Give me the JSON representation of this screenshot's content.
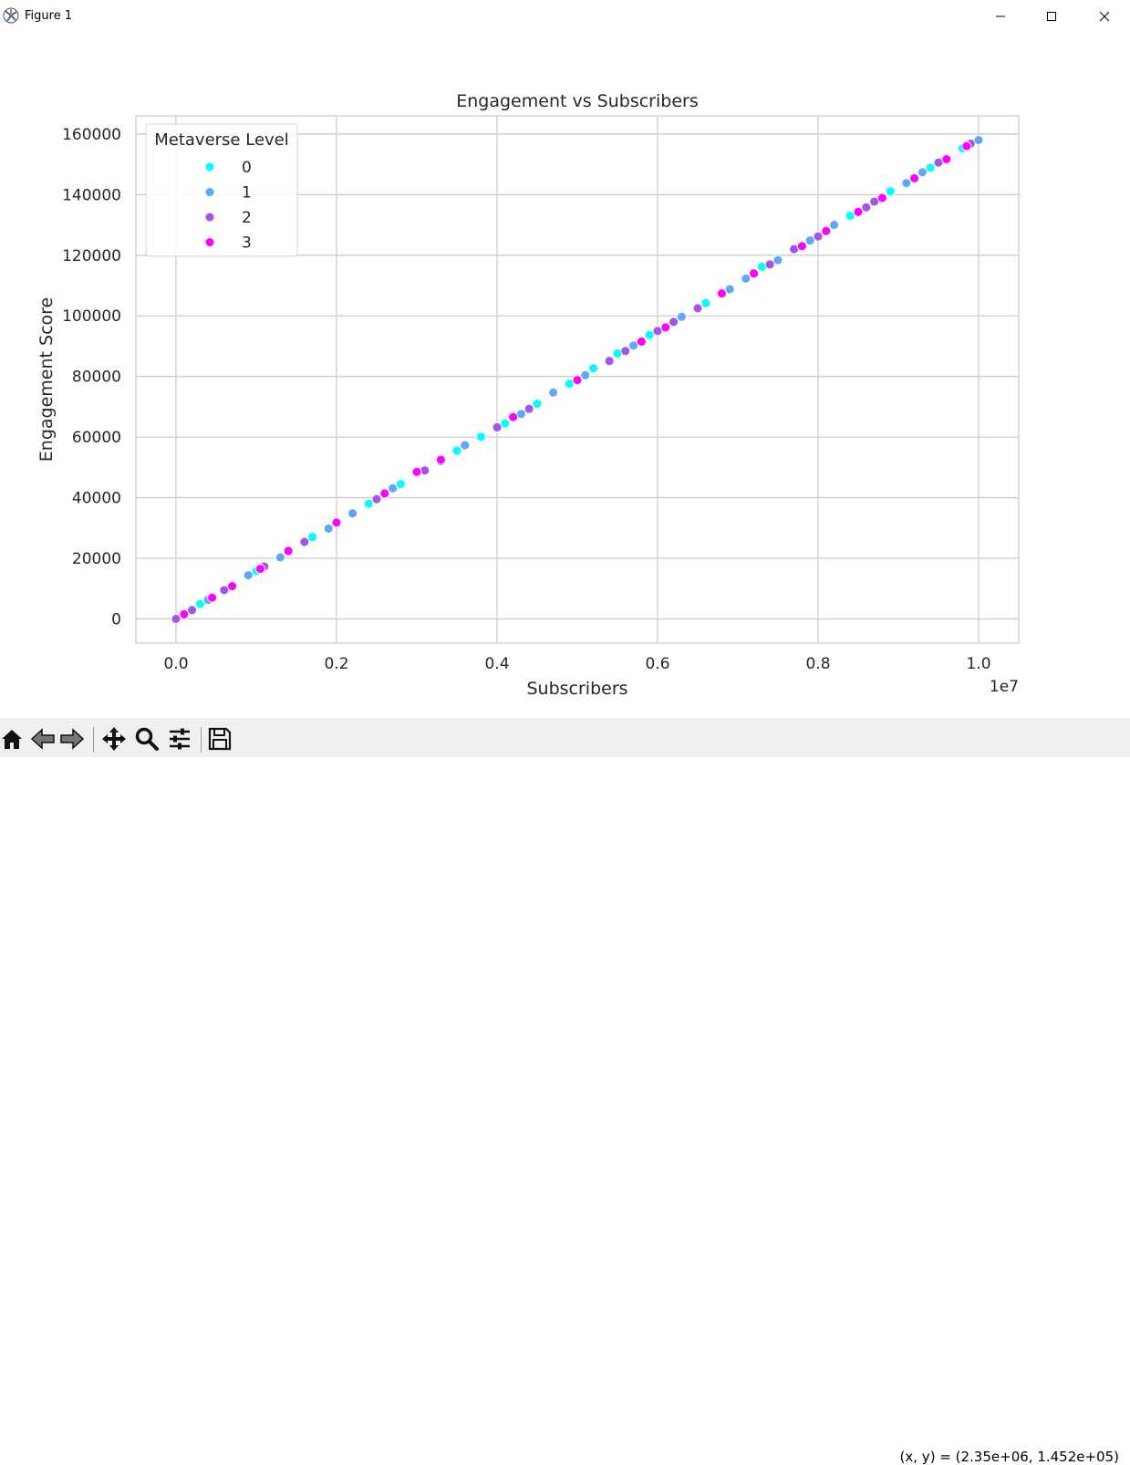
{
  "window": {
    "title": "Figure 1",
    "icons": {
      "app": "matplotlib-icon",
      "minimize": "minimize-icon",
      "maximize": "maximize-icon",
      "close": "close-icon"
    }
  },
  "toolbar": {
    "items": [
      "home-icon",
      "back-arrow-icon",
      "forward-arrow-icon",
      "pan-move-icon",
      "zoom-magnifier-icon",
      "configure-subplots-icon",
      "save-disk-icon"
    ],
    "coordinates": "(x, y) = (2.35e+06, 1.452e+05)"
  },
  "chart_data": {
    "type": "scatter",
    "title": "Engagement vs Subscribers",
    "xlabel": "Subscribers",
    "ylabel": "Engagement Score",
    "x_offset_label": "1e7",
    "xlim": [
      -0.05,
      1.05
    ],
    "ylim": [
      -8000,
      166000
    ],
    "xticks": [
      0.0,
      0.2,
      0.4,
      0.6,
      0.8,
      1.0
    ],
    "xtick_labels": [
      "0.0",
      "0.2",
      "0.4",
      "0.6",
      "0.8",
      "1.0"
    ],
    "yticks": [
      0,
      20000,
      40000,
      60000,
      80000,
      100000,
      120000,
      140000,
      160000
    ],
    "ytick_labels": [
      "0",
      "20000",
      "40000",
      "60000",
      "80000",
      "100000",
      "120000",
      "140000",
      "160000"
    ],
    "grid": true,
    "legend": {
      "title": "Metaverse Level",
      "position": "upper-left"
    },
    "series": [
      {
        "name": "0",
        "color": "#00ffff",
        "points": [
          [
            0.03,
            4900
          ],
          [
            0.1,
            15800
          ],
          [
            0.17,
            27000
          ],
          [
            0.24,
            38000
          ],
          [
            0.28,
            44500
          ],
          [
            0.35,
            55500
          ],
          [
            0.38,
            60100
          ],
          [
            0.41,
            64500
          ],
          [
            0.45,
            71000
          ],
          [
            0.49,
            77600
          ],
          [
            0.52,
            82700
          ],
          [
            0.55,
            87600
          ],
          [
            0.59,
            93700
          ],
          [
            0.66,
            104200
          ],
          [
            0.73,
            116200
          ],
          [
            0.84,
            133000
          ],
          [
            0.89,
            141100
          ],
          [
            0.94,
            148900
          ],
          [
            0.98,
            155300
          ]
        ]
      },
      {
        "name": "1",
        "color": "#5ca8ff",
        "points": [
          [
            0.04,
            6300
          ],
          [
            0.09,
            14400
          ],
          [
            0.13,
            20300
          ],
          [
            0.19,
            29800
          ],
          [
            0.22,
            34800
          ],
          [
            0.27,
            43100
          ],
          [
            0.33,
            52000
          ],
          [
            0.36,
            57300
          ],
          [
            0.43,
            67600
          ],
          [
            0.47,
            74700
          ],
          [
            0.51,
            80400
          ],
          [
            0.57,
            90200
          ],
          [
            0.63,
            99700
          ],
          [
            0.69,
            108800
          ],
          [
            0.71,
            112300
          ],
          [
            0.75,
            118400
          ],
          [
            0.79,
            124900
          ],
          [
            0.82,
            130000
          ],
          [
            0.91,
            143800
          ],
          [
            0.93,
            147400
          ],
          [
            0.99,
            156700
          ],
          [
            1.0,
            158000
          ]
        ]
      },
      {
        "name": "2",
        "color": "#a453f0",
        "points": [
          [
            0.0,
            0
          ],
          [
            0.02,
            2900
          ],
          [
            0.06,
            9500
          ],
          [
            0.11,
            17300
          ],
          [
            0.16,
            25400
          ],
          [
            0.2,
            31500
          ],
          [
            0.25,
            39500
          ],
          [
            0.31,
            49000
          ],
          [
            0.4,
            63200
          ],
          [
            0.44,
            69300
          ],
          [
            0.54,
            85100
          ],
          [
            0.56,
            88400
          ],
          [
            0.6,
            95000
          ],
          [
            0.62,
            98000
          ],
          [
            0.65,
            102500
          ],
          [
            0.74,
            117000
          ],
          [
            0.77,
            122000
          ],
          [
            0.8,
            126200
          ],
          [
            0.86,
            135800
          ],
          [
            0.87,
            137700
          ],
          [
            0.95,
            150600
          ],
          [
            0.99,
            156800
          ]
        ]
      },
      {
        "name": "3",
        "color": "#ff00ff",
        "points": [
          [
            0.01,
            1500
          ],
          [
            0.045,
            7000
          ],
          [
            0.07,
            10800
          ],
          [
            0.105,
            16500
          ],
          [
            0.14,
            22400
          ],
          [
            0.2,
            31800
          ],
          [
            0.26,
            41400
          ],
          [
            0.3,
            48500
          ],
          [
            0.33,
            52500
          ],
          [
            0.42,
            66600
          ],
          [
            0.5,
            78800
          ],
          [
            0.58,
            91500
          ],
          [
            0.61,
            96200
          ],
          [
            0.68,
            107400
          ],
          [
            0.72,
            114000
          ],
          [
            0.78,
            123000
          ],
          [
            0.81,
            128000
          ],
          [
            0.85,
            134300
          ],
          [
            0.88,
            138900
          ],
          [
            0.92,
            145400
          ],
          [
            0.96,
            151700
          ],
          [
            0.985,
            156000
          ]
        ]
      }
    ]
  }
}
